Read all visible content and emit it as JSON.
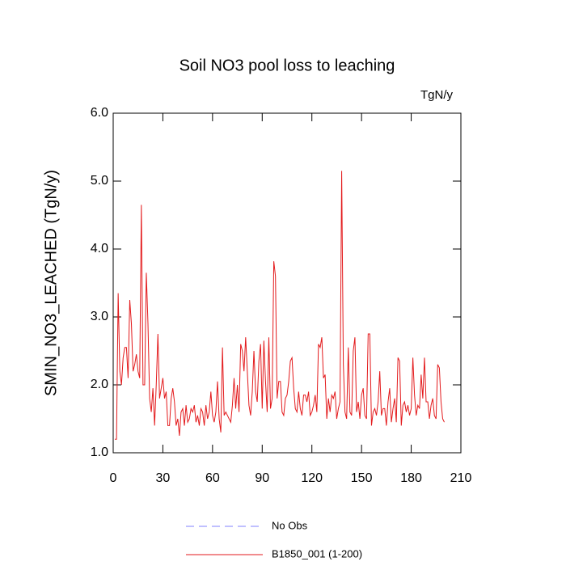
{
  "chart_data": {
    "type": "line",
    "title": "Soil NO3 pool loss to leaching",
    "units": "TgN/y",
    "y_label": "SMIN_NO3_LEACHED  (TgN/y)",
    "xlim": [
      0,
      210
    ],
    "xticks": [
      0,
      30,
      60,
      90,
      120,
      150,
      180,
      210
    ],
    "ylim": [
      1,
      6
    ],
    "yticks": [
      {
        "value": 1,
        "label": "1.0"
      },
      {
        "value": 2,
        "label": "2.0"
      },
      {
        "value": 3,
        "label": "3.0"
      },
      {
        "value": 4,
        "label": "4.0"
      },
      {
        "value": 5,
        "label": "5.0"
      },
      {
        "value": 6,
        "label": "6.0"
      }
    ],
    "x": [
      1,
      2,
      3,
      4,
      5,
      6,
      7,
      8,
      9,
      10,
      11,
      12,
      13,
      14,
      15,
      16,
      17,
      18,
      19,
      20,
      21,
      22,
      23,
      24,
      25,
      26,
      27,
      28,
      29,
      30,
      31,
      32,
      33,
      34,
      35,
      36,
      37,
      38,
      39,
      40,
      41,
      42,
      43,
      44,
      45,
      46,
      47,
      48,
      49,
      50,
      51,
      52,
      53,
      54,
      55,
      56,
      57,
      58,
      59,
      60,
      61,
      62,
      63,
      64,
      65,
      66,
      67,
      68,
      69,
      70,
      71,
      72,
      73,
      74,
      75,
      76,
      77,
      78,
      79,
      80,
      81,
      82,
      83,
      84,
      85,
      86,
      87,
      88,
      89,
      90,
      91,
      92,
      93,
      94,
      95,
      96,
      97,
      98,
      99,
      100,
      101,
      102,
      103,
      104,
      105,
      106,
      107,
      108,
      109,
      110,
      111,
      112,
      113,
      114,
      115,
      116,
      117,
      118,
      119,
      120,
      121,
      122,
      123,
      124,
      125,
      126,
      127,
      128,
      129,
      130,
      131,
      132,
      133,
      134,
      135,
      136,
      137,
      138,
      139,
      140,
      141,
      142,
      143,
      144,
      145,
      146,
      147,
      148,
      149,
      150,
      151,
      152,
      153,
      154,
      155,
      156,
      157,
      158,
      159,
      160,
      161,
      162,
      163,
      164,
      165,
      166,
      167,
      168,
      169,
      170,
      171,
      172,
      173,
      174,
      175,
      176,
      177,
      178,
      179,
      180,
      181,
      182,
      183,
      184,
      185,
      186,
      187,
      188,
      189,
      190,
      191,
      192,
      193,
      194,
      195,
      196,
      197,
      198,
      199,
      200
    ],
    "series": [
      {
        "name": "No Obs",
        "color": "#8080ff",
        "dash": true,
        "values": [
          null,
          null,
          null,
          null,
          null,
          null,
          null,
          null,
          null,
          null,
          null,
          null,
          null,
          null,
          null,
          null,
          null,
          null,
          null,
          null,
          null,
          null,
          null,
          null,
          null,
          null,
          null,
          null,
          null,
          null,
          null,
          null,
          null,
          null,
          null,
          null,
          null,
          null,
          null,
          null,
          null,
          null,
          null,
          null,
          null,
          null,
          null,
          null,
          null,
          null,
          null,
          null,
          null,
          null,
          null,
          null,
          null,
          null,
          null,
          null,
          null,
          null,
          null,
          null,
          null,
          null,
          null,
          null,
          null,
          null,
          null,
          null,
          null,
          null,
          null,
          null,
          null,
          null,
          null,
          null,
          null,
          null,
          null,
          null,
          null,
          null,
          null,
          null,
          null,
          null,
          null,
          null,
          null,
          null,
          null,
          null,
          null,
          null,
          null,
          null,
          null,
          null,
          null,
          null,
          null,
          null,
          null,
          null,
          null,
          null,
          null,
          null,
          null,
          null,
          null,
          null,
          null,
          null,
          null,
          null,
          null,
          null,
          null,
          null,
          null,
          null,
          null,
          null,
          null,
          null,
          null,
          null,
          null,
          null,
          null,
          null,
          null,
          null,
          null,
          null,
          null,
          null,
          null,
          null,
          null,
          null,
          null,
          null,
          null,
          null,
          null,
          null,
          null,
          null,
          null,
          null,
          null,
          null,
          null,
          null,
          null,
          null,
          null,
          null,
          null,
          null,
          null,
          null,
          null,
          null,
          null,
          null,
          null,
          null,
          null,
          null,
          null,
          null,
          null,
          null,
          null,
          null,
          null,
          null,
          null,
          null,
          null,
          null,
          null,
          null,
          null,
          null,
          null,
          null,
          null,
          null,
          null,
          null,
          null,
          null
        ]
      },
      {
        "name": "B1850_001 (1-200)",
        "color": "#e31a1c",
        "dash": false,
        "values": [
          1.2,
          1.2,
          3.35,
          2.2,
          2.0,
          2.4,
          2.55,
          2.55,
          2.1,
          3.25,
          2.9,
          2.2,
          2.3,
          2.45,
          2.2,
          2.1,
          4.65,
          2.0,
          2.0,
          3.65,
          2.9,
          1.8,
          1.6,
          1.95,
          1.4,
          2.0,
          2.75,
          1.8,
          1.95,
          2.1,
          1.8,
          1.9,
          1.4,
          1.4,
          1.8,
          1.95,
          1.75,
          1.4,
          1.5,
          1.25,
          1.6,
          1.65,
          1.4,
          1.7,
          1.45,
          1.5,
          1.65,
          1.6,
          1.7,
          1.45,
          1.55,
          1.4,
          1.65,
          1.6,
          1.4,
          1.7,
          1.5,
          1.6,
          1.9,
          1.55,
          1.45,
          1.6,
          2.05,
          1.5,
          1.3,
          2.55,
          1.55,
          1.6,
          1.55,
          1.5,
          1.45,
          1.7,
          2.1,
          1.65,
          2.0,
          1.6,
          2.6,
          2.5,
          2.2,
          2.7,
          2.2,
          1.7,
          1.55,
          1.9,
          2.5,
          1.9,
          1.75,
          2.35,
          2.6,
          1.65,
          2.65,
          2.05,
          1.6,
          2.7,
          1.65,
          1.8,
          3.82,
          3.6,
          1.8,
          2.05,
          2.05,
          1.6,
          1.55,
          1.8,
          1.85,
          2.05,
          2.35,
          2.4,
          1.95,
          1.65,
          1.6,
          1.9,
          1.65,
          1.55,
          1.85,
          1.85,
          1.75,
          1.9,
          1.55,
          1.6,
          1.7,
          1.85,
          1.6,
          2.6,
          2.55,
          2.7,
          2.1,
          2.15,
          1.5,
          1.8,
          1.6,
          1.85,
          1.8,
          1.9,
          1.5,
          1.65,
          1.75,
          5.15,
          2.3,
          1.6,
          1.5,
          2.55,
          1.6,
          1.55,
          2.5,
          2.7,
          1.6,
          1.75,
          1.5,
          1.85,
          1.95,
          1.55,
          1.5,
          2.75,
          2.75,
          1.4,
          1.6,
          1.65,
          1.55,
          1.75,
          2.2,
          1.55,
          1.65,
          1.65,
          1.4,
          1.75,
          1.95,
          1.45,
          1.65,
          1.8,
          1.45,
          2.4,
          2.35,
          1.4,
          1.7,
          1.75,
          1.6,
          1.7,
          1.55,
          1.65,
          2.4,
          1.85,
          1.55,
          1.7,
          1.65,
          2.15,
          1.8,
          2.4,
          1.75,
          1.75,
          1.5,
          1.7,
          1.8,
          1.55,
          1.5,
          2.3,
          2.25,
          1.75,
          1.5,
          1.45
        ]
      }
    ]
  }
}
